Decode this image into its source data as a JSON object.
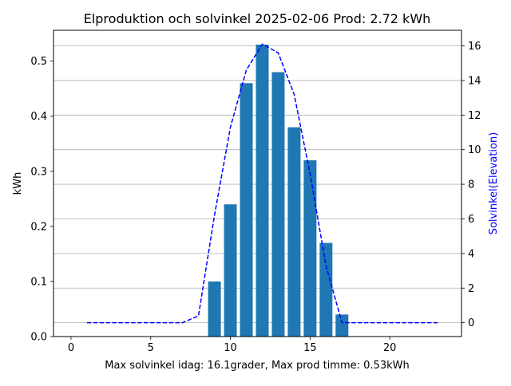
{
  "chart_data": {
    "type": "bar",
    "title": "Elproduktion och solvinkel 2025-02-06 Prod: 2.72 kWh",
    "xlabel": "Max solvinkel idag: 16.1grader, Max prod timme: 0.53kWh",
    "ylabel": "kWh",
    "ylabel_right": "Solvinkel(Elevation)",
    "xlim": [
      -1.1,
      24.5
    ],
    "ylim": [
      0,
      0.556
    ],
    "ylim_right": [
      -0.8,
      16.9
    ],
    "x_ticks": [
      0,
      5,
      10,
      15,
      20
    ],
    "y_ticks": [
      0.0,
      0.1,
      0.2,
      0.3,
      0.4,
      0.5
    ],
    "y_right_ticks": [
      0,
      2,
      4,
      6,
      8,
      10,
      12,
      14,
      16
    ],
    "grid": "horizontal, right axis",
    "bar_color": "#1f77b4",
    "line_color": "#0000ff",
    "series": [
      {
        "type": "bar",
        "axis": "left",
        "x": [
          9,
          10,
          11,
          12,
          13,
          14,
          15,
          16,
          17
        ],
        "values": [
          0.1,
          0.24,
          0.46,
          0.53,
          0.48,
          0.38,
          0.32,
          0.17,
          0.04
        ]
      },
      {
        "type": "line",
        "axis": "right",
        "style": "dashed",
        "x": [
          1,
          2,
          3,
          4,
          5,
          6,
          7,
          8,
          9,
          10,
          11,
          12,
          13,
          14,
          15,
          16,
          17,
          18,
          19,
          20,
          21,
          22,
          23
        ],
        "values": [
          0,
          0,
          0,
          0,
          0,
          0,
          0,
          0.4,
          6.2,
          11.3,
          14.6,
          16.1,
          15.6,
          13.2,
          8.6,
          3.3,
          0,
          0,
          0,
          0,
          0,
          0,
          0
        ]
      }
    ]
  }
}
